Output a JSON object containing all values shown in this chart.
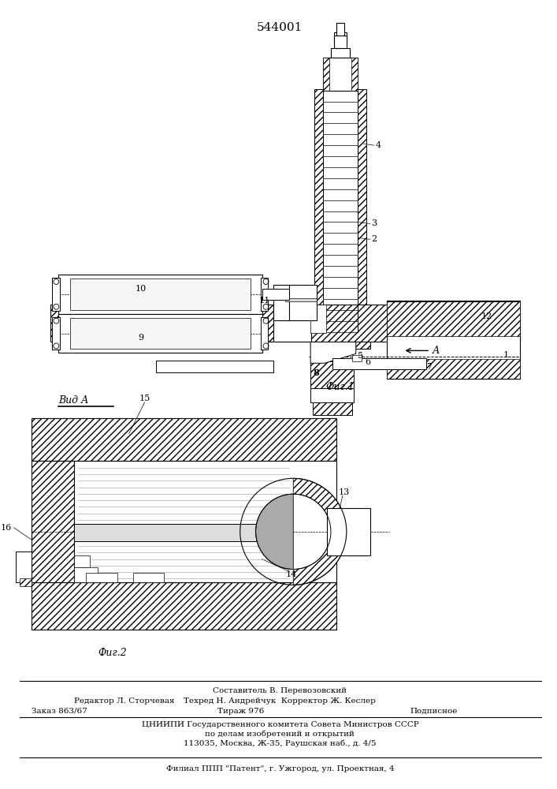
{
  "title": "544001",
  "bg_color": "#ffffff",
  "fig1_caption": "Фиг.1",
  "fig2_caption": "Фиг.2",
  "vida_label": "Вид А"
}
